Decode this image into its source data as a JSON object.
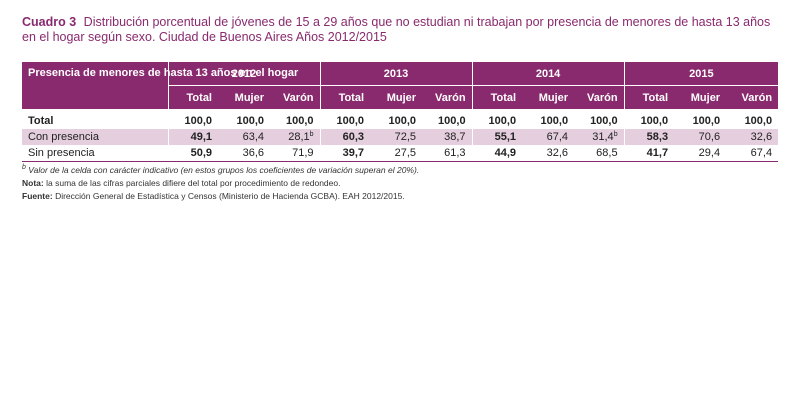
{
  "title": {
    "label": "Cuadro 3",
    "text": "Distribución porcentual de jóvenes de 15 a 29 años que no estudian ni trabajan por presencia de menores de hasta 13 años en el hogar según sexo. Ciudad de Buenos Aires Años 2012/2015"
  },
  "table": {
    "stub_header": "Presencia de menores de hasta 13 años en el hogar",
    "years": [
      "2012",
      "2013",
      "2014",
      "2015"
    ],
    "subheaders": [
      "Total",
      "Mujer",
      "Varón"
    ],
    "rows": [
      {
        "label": "Total",
        "cells": [
          {
            "v": "100,0",
            "f": ""
          },
          {
            "v": "100,0",
            "f": ""
          },
          {
            "v": "100,0",
            "f": ""
          },
          {
            "v": "100,0",
            "f": ""
          },
          {
            "v": "100,0",
            "f": ""
          },
          {
            "v": "100,0",
            "f": ""
          },
          {
            "v": "100,0",
            "f": ""
          },
          {
            "v": "100,0",
            "f": ""
          },
          {
            "v": "100,0",
            "f": ""
          },
          {
            "v": "100,0",
            "f": ""
          },
          {
            "v": "100,0",
            "f": ""
          },
          {
            "v": "100,0",
            "f": ""
          }
        ]
      },
      {
        "label": "Con presencia",
        "cells": [
          {
            "v": "49,1",
            "f": ""
          },
          {
            "v": "63,4",
            "f": ""
          },
          {
            "v": "28,1",
            "f": "b"
          },
          {
            "v": "60,3",
            "f": ""
          },
          {
            "v": "72,5",
            "f": ""
          },
          {
            "v": "38,7",
            "f": ""
          },
          {
            "v": "55,1",
            "f": ""
          },
          {
            "v": "67,4",
            "f": ""
          },
          {
            "v": "31,4",
            "f": "b"
          },
          {
            "v": "58,3",
            "f": ""
          },
          {
            "v": "70,6",
            "f": ""
          },
          {
            "v": "32,6",
            "f": ""
          }
        ]
      },
      {
        "label": "Sin presencia",
        "cells": [
          {
            "v": "50,9",
            "f": ""
          },
          {
            "v": "36,6",
            "f": ""
          },
          {
            "v": "71,9",
            "f": ""
          },
          {
            "v": "39,7",
            "f": ""
          },
          {
            "v": "27,5",
            "f": ""
          },
          {
            "v": "61,3",
            "f": ""
          },
          {
            "v": "44,9",
            "f": ""
          },
          {
            "v": "32,6",
            "f": ""
          },
          {
            "v": "68,5",
            "f": ""
          },
          {
            "v": "41,7",
            "f": ""
          },
          {
            "v": "29,4",
            "f": ""
          },
          {
            "v": "67,4",
            "f": ""
          }
        ]
      }
    ]
  },
  "notes": {
    "footnote_mark": "b",
    "footnote_text": "Valor de la celda con carácter indicativo (en estos grupos los coeficientes de variación superan el 20%).",
    "nota_label": "Nota:",
    "nota_text": "la suma de las cifras parciales difiere del total por procedimiento de redondeo.",
    "fuente_label": "Fuente:",
    "fuente_text": "Dirección General de Estadística y Censos (Ministerio de Hacienda GCBA). EAH 2012/2015."
  },
  "colors": {
    "header_bg": "#8a2a6e",
    "highlight_row": "#e5cfdf",
    "title_text": "#8a2a6e"
  }
}
